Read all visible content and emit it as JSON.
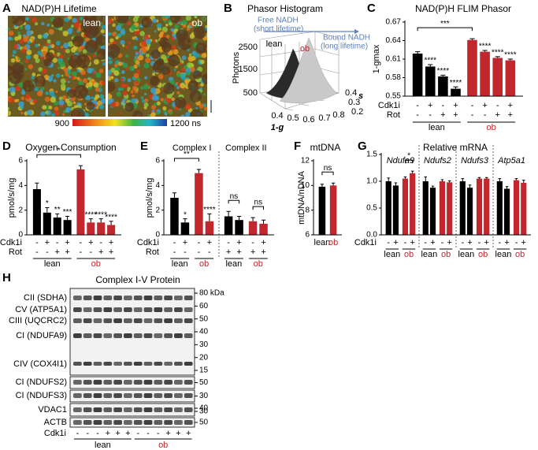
{
  "chart_data": [
    {
      "type": "bar",
      "panel": "C",
      "title": "NAD(P)H FLIM Phasor",
      "y_label": "1-gmax",
      "ylim": [
        0.55,
        0.67
      ],
      "yticks": [
        0.55,
        0.58,
        0.61,
        0.64,
        0.67
      ],
      "groups": [
        {
          "series": [
            {
              "name": "lean",
              "color": "#000000",
              "values": [
                0.619,
                0.598,
                0.582,
                0.562
              ],
              "errors": [
                0.003,
                0.003,
                0.002,
                0.003
              ],
              "annotations": [
                null,
                "****",
                "****",
                "****"
              ]
            },
            {
              "name": "ob",
              "color": "#c1272d",
              "values": [
                0.641,
                0.622,
                0.612,
                0.608
              ],
              "errors": [
                0.002,
                0.002,
                0.002,
                0.002
              ],
              "annotations": [
                null,
                "****",
                "****",
                "****"
              ]
            }
          ],
          "brackets": [
            {
              "text": "***",
              "bars": [
                [
                  0,
                  0
                ],
                [
                  1,
                  0
                ]
              ]
            }
          ]
        }
      ],
      "rows": [
        {
          "label": "Cdk1i",
          "marks": [
            "-",
            "+",
            "-",
            "+",
            "-",
            "+",
            "-",
            "+"
          ]
        },
        {
          "label": "Rot",
          "marks": [
            "-",
            "-",
            "+",
            "+",
            "-",
            "-",
            "+",
            "+"
          ]
        }
      ]
    },
    {
      "type": "bar",
      "panel": "D",
      "title": "Oxygen Consumption",
      "y_label": "pmol/s/mg",
      "ylim": [
        0,
        6
      ],
      "yticks": [
        0,
        2,
        4,
        6
      ],
      "groups": [
        {
          "series": [
            {
              "name": "lean",
              "color": "#000000",
              "values": [
                3.7,
                1.8,
                1.4,
                1.2
              ],
              "errors": [
                0.5,
                0.4,
                0.3,
                0.3
              ],
              "annotations": [
                null,
                "*",
                "**",
                "***"
              ]
            },
            {
              "name": "ob",
              "color": "#c1272d",
              "values": [
                5.3,
                1.0,
                1.0,
                0.8
              ],
              "errors": [
                0.3,
                0.3,
                0.3,
                0.3
              ],
              "annotations": [
                null,
                "****",
                "****",
                "****"
              ]
            }
          ],
          "brackets": [
            {
              "text": "*",
              "bars": [
                [
                  0,
                  0
                ],
                [
                  1,
                  0
                ]
              ]
            }
          ]
        }
      ],
      "rows": [
        {
          "label": "Cdk1i",
          "marks": [
            "-",
            "+",
            "-",
            "+",
            "-",
            "+",
            "-",
            "+"
          ]
        },
        {
          "label": "Rot",
          "marks": [
            "-",
            "-",
            "+",
            "+",
            "-",
            "-",
            "+",
            "+"
          ]
        }
      ]
    },
    {
      "type": "bar",
      "panel": "E",
      "y_label": "pmol/s/mg",
      "ylim": [
        0,
        6
      ],
      "yticks": [
        0,
        2,
        4,
        6
      ],
      "groups": [
        {
          "title": "Complex I",
          "series": [
            {
              "name": "lean",
              "color": "#000000",
              "values": [
                3.0,
                1.0
              ],
              "errors": [
                0.4,
                0.3
              ],
              "annotations": [
                null,
                "*"
              ]
            },
            {
              "name": "ob",
              "color": "#c1272d",
              "values": [
                5.0,
                1.1
              ],
              "errors": [
                0.3,
                0.6
              ],
              "annotations": [
                null,
                "****"
              ]
            }
          ],
          "brackets": [
            {
              "text": "**",
              "bars": [
                [
                  0,
                  0
                ],
                [
                  1,
                  0
                ]
              ]
            }
          ]
        },
        {
          "title": "Complex II",
          "series": [
            {
              "name": "lean",
              "color": "#000000",
              "values": [
                1.5,
                1.2
              ],
              "errors": [
                0.4,
                0.3
              ],
              "annotations": [
                null,
                null
              ]
            },
            {
              "name": "ob",
              "color": "#c1272d",
              "values": [
                1.1,
                0.9
              ],
              "errors": [
                0.3,
                0.3
              ],
              "annotations": [
                null,
                null
              ]
            }
          ],
          "brackets": [
            {
              "text": "ns",
              "bars": [
                [
                  0,
                  0
                ],
                [
                  0,
                  1
                ]
              ]
            },
            {
              "text": "ns",
              "bars": [
                [
                  1,
                  0
                ],
                [
                  1,
                  1
                ]
              ]
            }
          ]
        }
      ],
      "rows": [
        {
          "label": "Cdk1i",
          "marks": [
            "-",
            "+",
            "-",
            "+",
            "-",
            "+",
            "-",
            "+"
          ]
        },
        {
          "label": "Rot",
          "marks": [
            "-",
            "-",
            "-",
            "-",
            "+",
            "+",
            "+",
            "+"
          ]
        }
      ]
    },
    {
      "type": "bar",
      "panel": "F",
      "title": "mtDNA",
      "y_label": "mtDNA/nDNA",
      "ylim": [
        6,
        12
      ],
      "yticks": [
        6,
        8,
        10,
        12
      ],
      "groups": [
        {
          "series": [
            {
              "name": "lean",
              "color": "#000000",
              "values": [
                9.9
              ],
              "errors": [
                0.2
              ],
              "annotations": [
                null
              ]
            },
            {
              "name": "ob",
              "color": "#c1272d",
              "values": [
                10.0
              ],
              "errors": [
                0.2
              ],
              "annotations": [
                null
              ]
            }
          ],
          "brackets": [
            {
              "text": "ns",
              "bars": [
                [
                  0,
                  0
                ],
                [
                  1,
                  0
                ]
              ]
            }
          ]
        }
      ],
      "rows": []
    },
    {
      "type": "bar",
      "panel": "G",
      "title": "Relative mRNA",
      "ylim": [
        0,
        1.5
      ],
      "yticks": [
        {
          "value": 0,
          "label": "0.0"
        },
        0.5,
        {
          "value": 1,
          "label": "1.0"
        },
        1.5
      ],
      "groups": [
        {
          "title": "Ndufa9",
          "series": [
            {
              "name": "lean",
              "color": "#000000",
              "values": [
                1.0,
                0.92
              ],
              "errors": [
                0.06,
                0.05
              ],
              "annotations": [
                null,
                null
              ]
            },
            {
              "name": "ob",
              "color": "#c1272d",
              "values": [
                1.05,
                1.15
              ],
              "errors": [
                0.03,
                0.04
              ],
              "annotations": [
                null,
                null
              ]
            }
          ],
          "brackets": [
            {
              "text": "*",
              "bars": [
                [
                  1,
                  0
                ],
                [
                  1,
                  1
                ]
              ]
            }
          ]
        },
        {
          "title": "Ndufs2",
          "series": [
            {
              "name": "lean",
              "color": "#000000",
              "values": [
                1.0,
                0.88
              ],
              "errors": [
                0.08,
                0.03
              ],
              "annotations": [
                null,
                null
              ]
            },
            {
              "name": "ob",
              "color": "#c1272d",
              "values": [
                1.0,
                0.98
              ],
              "errors": [
                0.03,
                0.03
              ],
              "annotations": [
                null,
                null
              ]
            }
          ]
        },
        {
          "title": "Ndufs3",
          "series": [
            {
              "name": "lean",
              "color": "#000000",
              "values": [
                1.0,
                0.88
              ],
              "errors": [
                0.05,
                0.05
              ],
              "annotations": [
                null,
                null
              ]
            },
            {
              "name": "ob",
              "color": "#c1272d",
              "values": [
                1.05,
                1.05
              ],
              "errors": [
                0.02,
                0.02
              ],
              "annotations": [
                null,
                null
              ]
            }
          ]
        },
        {
          "title": "Atp5a1",
          "series": [
            {
              "name": "lean",
              "color": "#000000",
              "values": [
                1.0,
                0.86
              ],
              "errors": [
                0.05,
                0.04
              ],
              "annotations": [
                null,
                null
              ]
            },
            {
              "name": "ob",
              "color": "#c1272d",
              "values": [
                1.02,
                0.97
              ],
              "errors": [
                0.03,
                0.05
              ],
              "annotations": [
                null,
                null
              ]
            }
          ]
        }
      ],
      "rows": [
        {
          "label": "Cdk1i",
          "marks": [
            "-",
            "+",
            "-",
            "+",
            "-",
            "+",
            "-",
            "+",
            "-",
            "+",
            "-",
            "+",
            "-",
            "+",
            "-",
            "+"
          ]
        }
      ]
    }
  ],
  "panels": {
    "A": {
      "letter": "A",
      "title": "NAD(P)H Lifetime",
      "image_labels": [
        "lean",
        "ob"
      ],
      "colorbar": [
        "900",
        "1200 ns"
      ]
    },
    "B": {
      "letter": "B",
      "title": "Phasor Histogram",
      "free": [
        "Free NADH",
        "(short lifetime)"
      ],
      "bound": [
        "Bound NADH",
        "(long lifetime)"
      ],
      "series_labels": [
        "lean",
        "ob"
      ],
      "z_label": "Photons",
      "z_ticks": [
        "2500",
        "1500",
        "500"
      ],
      "x_label": "1-g",
      "x_ticks": [
        "0.4",
        "0.5",
        "0.6",
        "0.7",
        "0.8"
      ],
      "y_label": "s",
      "y_ticks": [
        "0.4",
        "0.3",
        "0.2"
      ]
    },
    "H": {
      "letter": "H",
      "title": "Complex I-V Protein",
      "blots": [
        {
          "labels": [
            "CII (SDHA)",
            "CV (ATP5A1)",
            "CIII (UQCRC2)",
            "CI (NDUFA9)",
            "CIV (COX4I1)"
          ],
          "markers": [
            "80 kDa",
            "60",
            "50",
            "40",
            "30",
            "20",
            "15"
          ]
        },
        {
          "labels": [
            "CI (NDUFS2)"
          ],
          "markers": [
            "50"
          ]
        },
        {
          "labels": [
            "CI (NDUFS3)"
          ],
          "markers": [
            "30"
          ]
        },
        {
          "labels": [
            "VDAC1"
          ],
          "markers": [
            "40",
            "30"
          ]
        },
        {
          "labels": [
            "ACTB"
          ],
          "markers": [
            "50"
          ]
        }
      ],
      "row_label": "Cdk1i",
      "lanes": [
        "-",
        "-",
        "-",
        "+",
        "+",
        "+",
        "-",
        "-",
        "-",
        "+",
        "+",
        "+"
      ],
      "groups": [
        "lean",
        "ob"
      ]
    }
  }
}
